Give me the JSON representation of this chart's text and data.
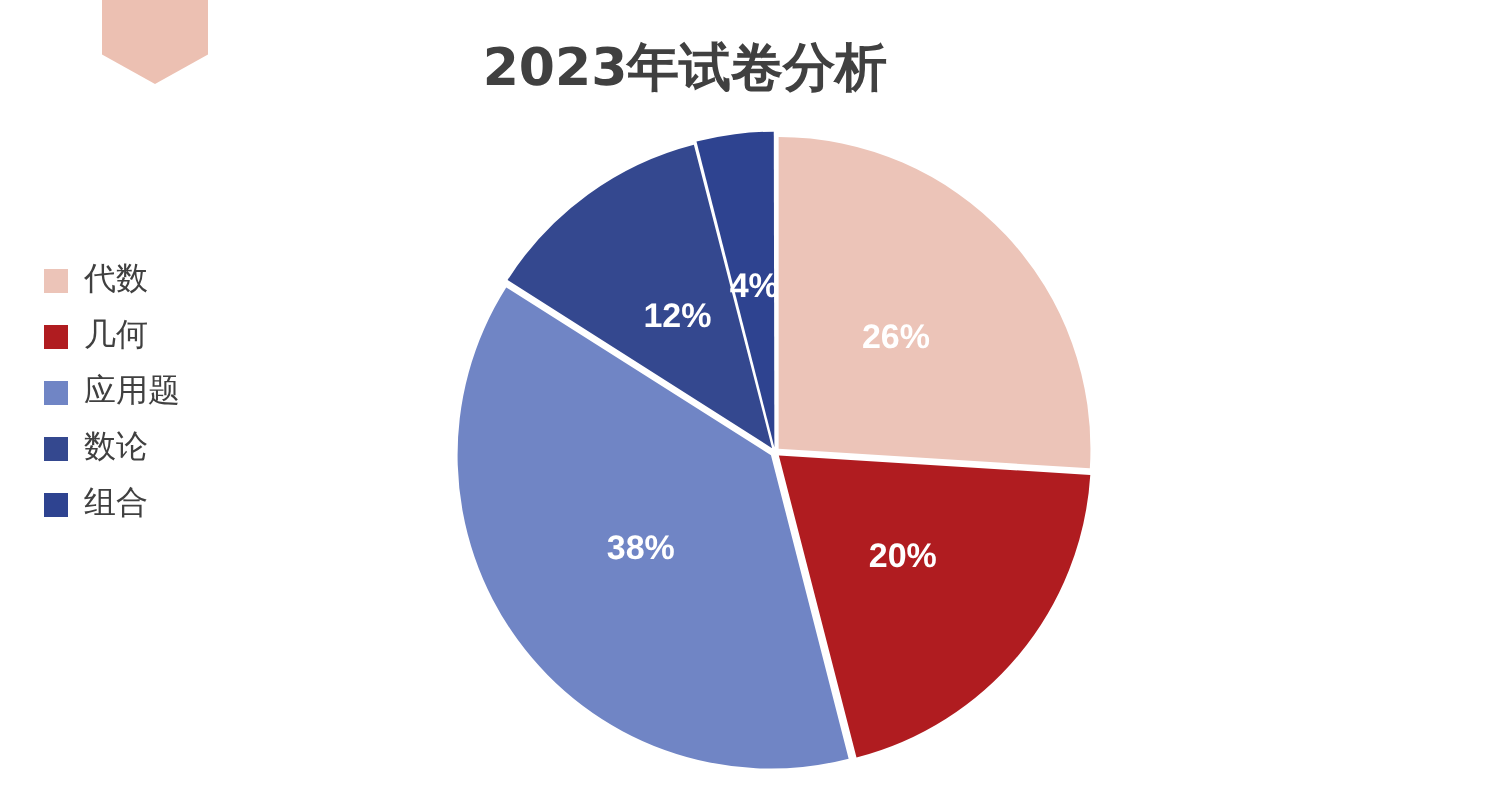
{
  "chart_data": {
    "type": "pie",
    "title": "2023年试卷分析",
    "categories": [
      "代数",
      "几何",
      "应用题",
      "数论",
      "组合"
    ],
    "values": [
      26,
      20,
      38,
      12,
      4
    ],
    "colors": [
      "#ecc4b8",
      "#b01c20",
      "#7085c5",
      "#34488f",
      "#2e4390"
    ],
    "value_labels": [
      "26%",
      "20%",
      "38%",
      "12%",
      "4%"
    ],
    "legend": "left"
  }
}
